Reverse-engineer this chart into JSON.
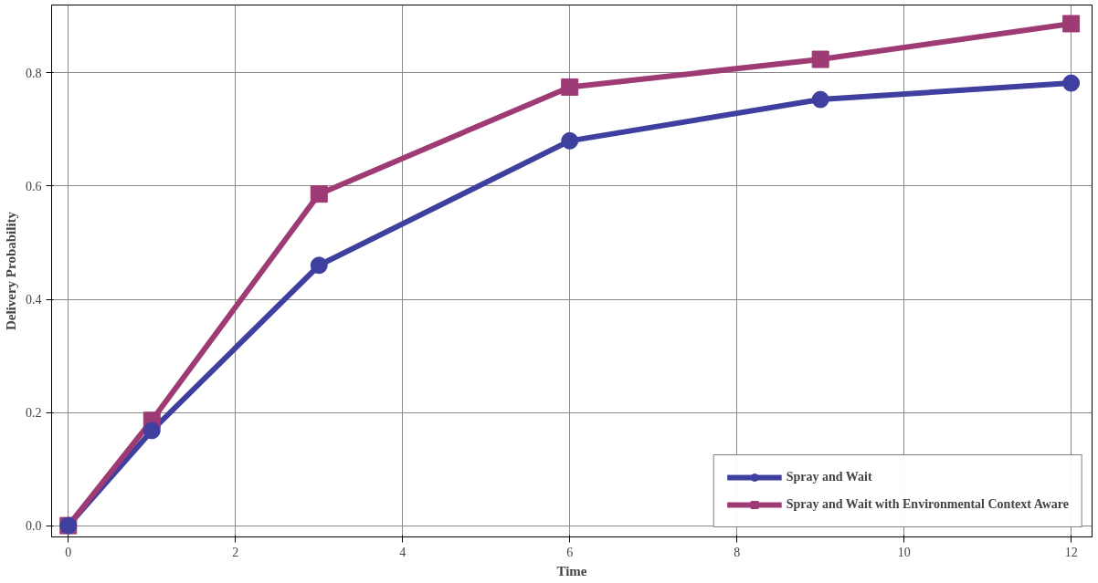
{
  "chart_data": {
    "type": "line",
    "xlabel": "Time",
    "ylabel": "Delivery Probability",
    "x": [
      0,
      1,
      3,
      6,
      9,
      12
    ],
    "series": [
      {
        "name": "Spray and Wait",
        "color": "#3f3f9f",
        "values": [
          0,
          0.168,
          0.46,
          0.68,
          0.753,
          0.782
        ],
        "marker": "circle"
      },
      {
        "name": "Spray and Wait with Environmental Context Aware",
        "color": "#9e3b74",
        "values": [
          0,
          0.186,
          0.586,
          0.775,
          0.824,
          0.887
        ],
        "marker": "square"
      }
    ],
    "xlim": [
      -0.2,
      12.25
    ],
    "ylim": [
      -0.02,
      0.92
    ],
    "xticks": [
      0,
      2,
      4,
      6,
      8,
      10,
      12
    ],
    "yticks": [
      {
        "value": 0,
        "label": "0.0"
      },
      {
        "value": 0.2,
        "label": "0.2"
      },
      {
        "value": 0.4,
        "label": "0.4"
      },
      {
        "value": 0.6,
        "label": "0.6"
      },
      {
        "value": 0.8,
        "label": "0.8"
      }
    ],
    "grid": true,
    "legend": "bottom right",
    "line_style": "solid"
  }
}
